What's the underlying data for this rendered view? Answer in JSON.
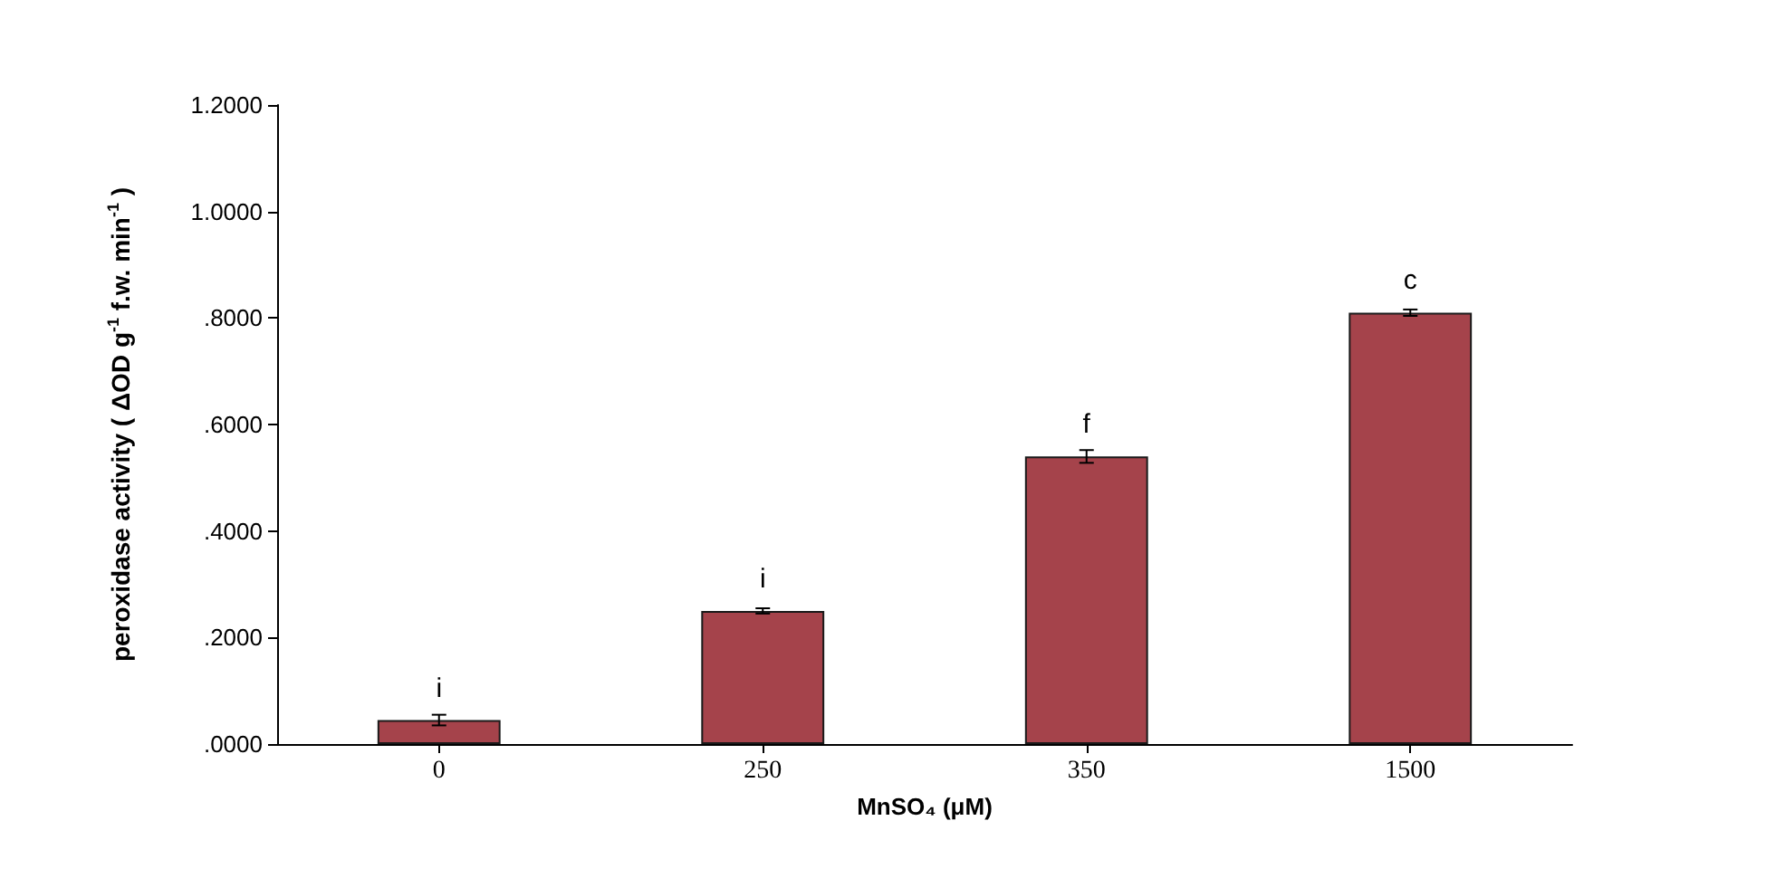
{
  "chart_data": {
    "type": "bar",
    "xlabel": "MnSO₄ (μM)",
    "ylabel": "peroxidase activity ( ΔOD g$^{-1}$ f.w. min$^{-1}$ )",
    "categories": [
      "0",
      "250",
      "350",
      "1500"
    ],
    "values": [
      0.045,
      0.25,
      0.54,
      0.81
    ],
    "errors": [
      0.01,
      0.005,
      0.012,
      0.006
    ],
    "color": "#a5434b",
    "ylim": [
      0,
      1.2
    ],
    "yticks": [
      {
        "value": 0,
        "label": ".0000"
      },
      {
        "value": 0.2,
        "label": ".2000"
      },
      {
        "value": 0.4,
        "label": ".4000"
      },
      {
        "value": 0.6,
        "label": ".6000"
      },
      {
        "value": 0.8,
        "label": ".8000"
      },
      {
        "value": 1.0,
        "label": "1.0000"
      },
      {
        "value": 1.2,
        "label": "1.2000"
      }
    ],
    "grid": false,
    "value_labels": [
      "i",
      "i",
      "f",
      "c"
    ]
  }
}
